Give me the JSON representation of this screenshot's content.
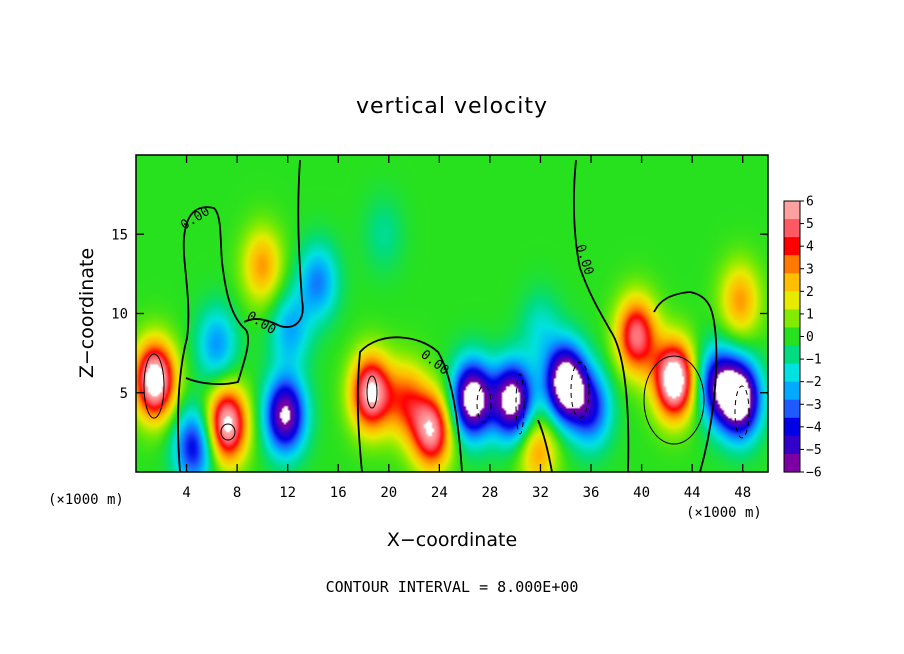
{
  "chart_data": {
    "type": "heatmap",
    "title": "vertical velocity",
    "xlabel": "X−coordinate",
    "ylabel": "Z−coordinate",
    "x_unit_left": "(×1000 m)",
    "x_unit_right": "(×1000 m)",
    "footer": "CONTOUR INTERVAL = 8.000E+00",
    "xlim": [
      0,
      50
    ],
    "ylim": [
      0,
      20
    ],
    "x_ticks": [
      4,
      8,
      12,
      16,
      20,
      24,
      28,
      32,
      36,
      40,
      44,
      48
    ],
    "y_ticks": [
      5,
      10,
      15
    ],
    "colorbar": {
      "range": [
        -6,
        6
      ],
      "ticks": [
        "6",
        "5",
        "4",
        "3",
        "2",
        "1",
        "0",
        "−1",
        "−2",
        "−3",
        "−4",
        "−5",
        "−6"
      ]
    },
    "contour_labels": [
      "0.00",
      "0.00",
      "0.00",
      "0.00"
    ],
    "features": [
      {
        "x": 1.5,
        "z": 5.8,
        "w": 7.5
      },
      {
        "x": 4.6,
        "z": 1.6,
        "w": -4.5
      },
      {
        "x": 7.2,
        "z": 3.0,
        "w": 6.8
      },
      {
        "x": 10.0,
        "z": 13.0,
        "w": 3.0
      },
      {
        "x": 11.8,
        "z": 3.6,
        "w": -6.5
      },
      {
        "x": 14.4,
        "z": 12.0,
        "w": -3.0
      },
      {
        "x": 12.2,
        "z": 9.0,
        "w": -2.5
      },
      {
        "x": 6.4,
        "z": 8.0,
        "w": -2.8
      },
      {
        "x": 18.6,
        "z": 5.0,
        "w": 6.5
      },
      {
        "x": 21.4,
        "z": 4.5,
        "w": 3.4
      },
      {
        "x": 23.4,
        "z": 2.6,
        "w": 6.0
      },
      {
        "x": 26.6,
        "z": 4.6,
        "w": -7.5
      },
      {
        "x": 29.8,
        "z": 4.5,
        "w": -7.2
      },
      {
        "x": 34.0,
        "z": 5.6,
        "w": -8.0
      },
      {
        "x": 36.0,
        "z": 4.0,
        "w": -4.0
      },
      {
        "x": 31.8,
        "z": 1.4,
        "w": 3.0
      },
      {
        "x": 42.6,
        "z": 5.8,
        "w": 7.8
      },
      {
        "x": 39.6,
        "z": 8.6,
        "w": 5.5
      },
      {
        "x": 46.0,
        "z": 5.5,
        "w": -5.0
      },
      {
        "x": 47.8,
        "z": 4.6,
        "w": -7.6
      },
      {
        "x": 47.8,
        "z": 10.8,
        "w": 3.0
      },
      {
        "x": 19.6,
        "z": 15.0,
        "w": -1.0
      },
      {
        "x": 32.0,
        "z": 9.0,
        "w": -1.5
      }
    ]
  }
}
